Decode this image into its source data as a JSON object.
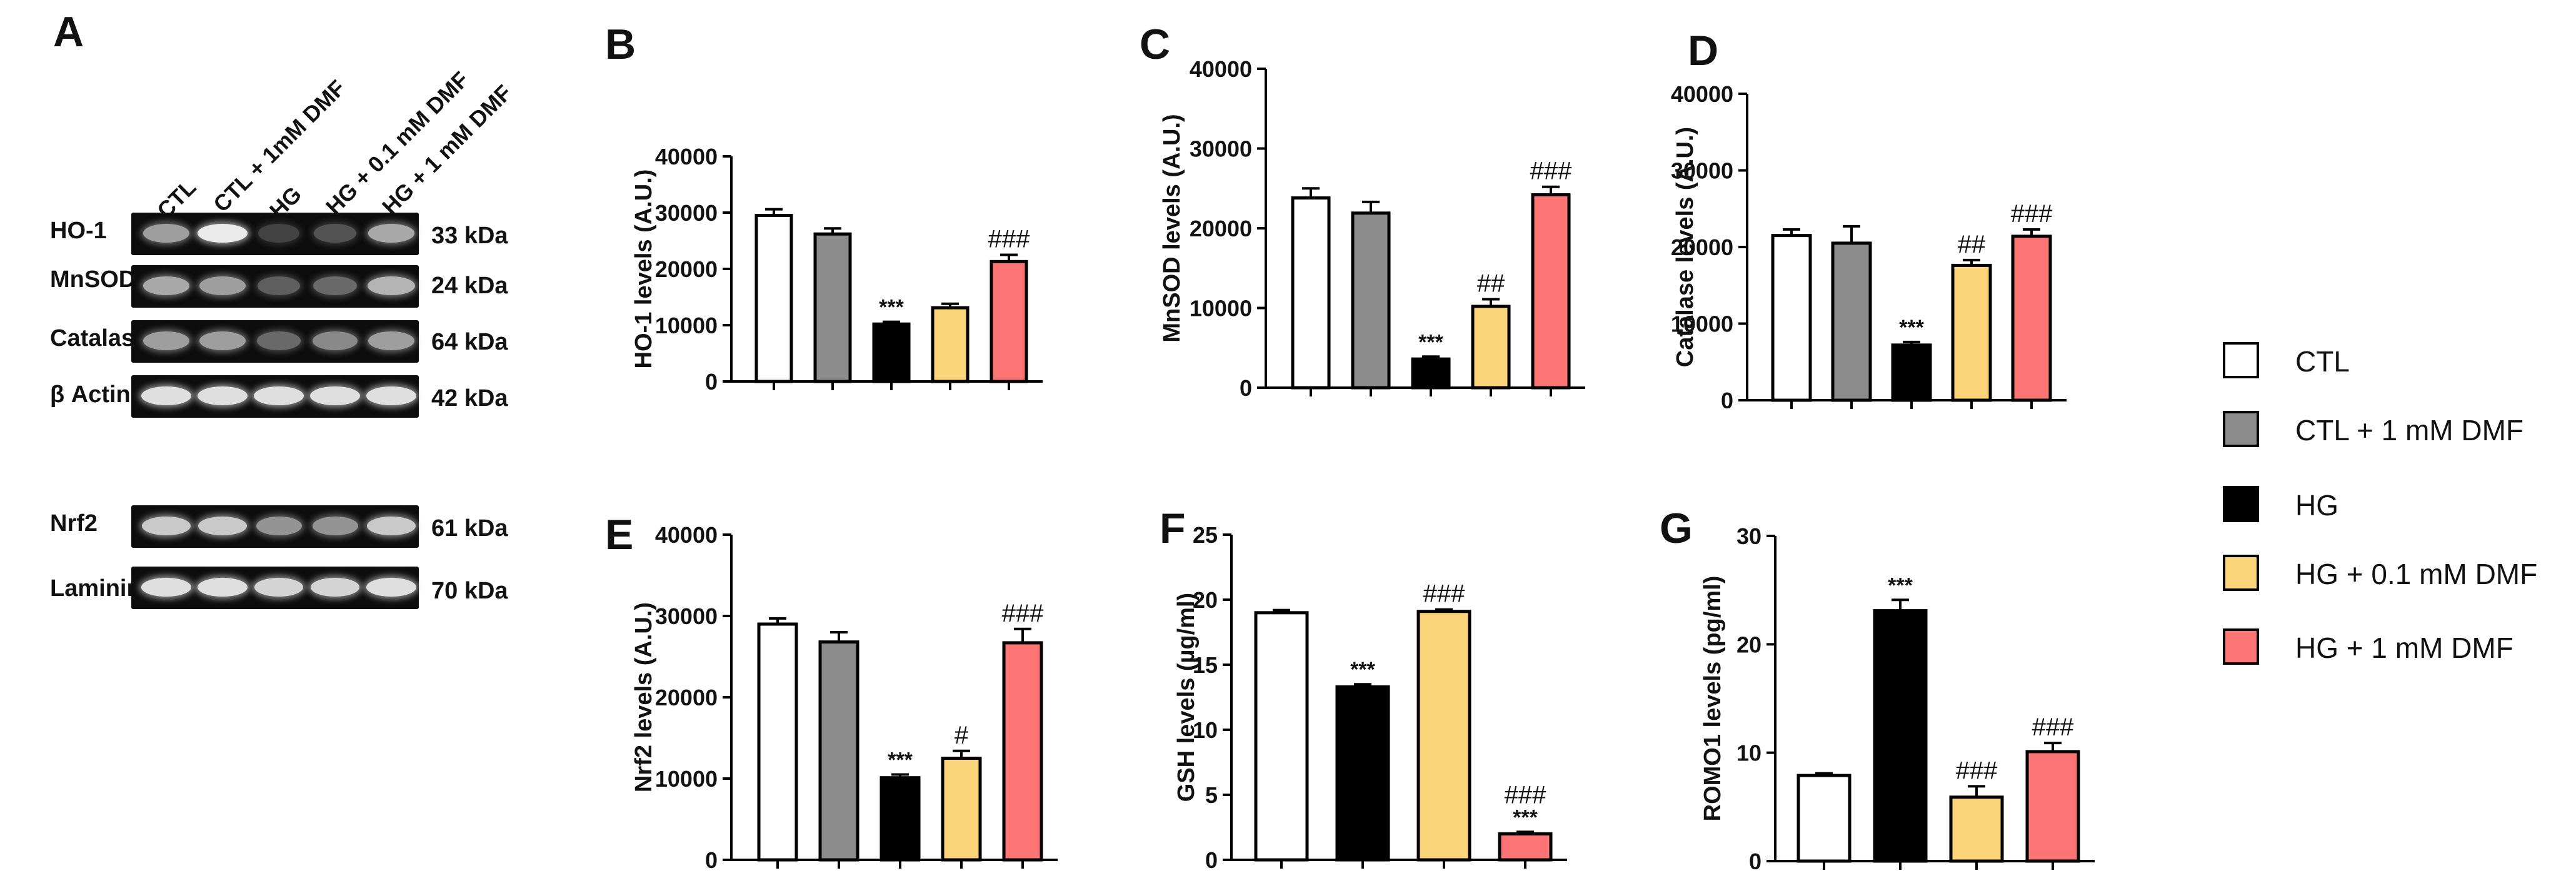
{
  "panel_labels": {
    "a": "A",
    "b": "B",
    "c": "C",
    "d": "D",
    "e": "E",
    "f": "F",
    "g": "G"
  },
  "blot": {
    "lanes": [
      "CTL",
      "CTL + 1mM DMF",
      "HG",
      "HG + 0.1 mM DMF",
      "HG + 1 mM DMF"
    ],
    "rows": [
      {
        "protein": "HO-1",
        "size": "33 kDa",
        "intensity": [
          0.55,
          0.9,
          0.12,
          0.2,
          0.6
        ]
      },
      {
        "protein": "MnSOD",
        "size": "24 kDa",
        "intensity": [
          0.6,
          0.55,
          0.25,
          0.3,
          0.65
        ]
      },
      {
        "protein": "Catalase",
        "size": "64 kDa",
        "intensity": [
          0.55,
          0.55,
          0.3,
          0.45,
          0.55
        ]
      },
      {
        "protein": "β Actin",
        "size": "42 kDa",
        "intensity": [
          0.85,
          0.85,
          0.85,
          0.85,
          0.85
        ]
      },
      {
        "protein": "Nrf2",
        "size": "61 kDa",
        "intensity": [
          0.75,
          0.75,
          0.5,
          0.5,
          0.75
        ]
      },
      {
        "protein": "Laminin",
        "size": "70 kDa",
        "intensity": [
          0.85,
          0.85,
          0.8,
          0.8,
          0.85
        ]
      }
    ]
  },
  "legend": [
    {
      "label": "CTL",
      "color": "#ffffff"
    },
    {
      "label": "CTL + 1 mM DMF",
      "color": "#8c8c8c"
    },
    {
      "label": "HG",
      "color": "#000000"
    },
    {
      "label": "HG + 0.1 mM DMF",
      "color": "#fcd57a"
    },
    {
      "label": "HG + 1 mM DMF",
      "color": "#fc7474"
    }
  ],
  "chart_data": [
    {
      "type": "bar",
      "panel": "B",
      "ylabel": "HO-1 levels (A.U.)",
      "ylim": [
        0,
        40000
      ],
      "yticks": [
        "0",
        "10000",
        "20000",
        "30000",
        "40000"
      ],
      "categories": [
        "CTL",
        "CTL + 1 mM DMF",
        "HG",
        "HG + 0.1 mM DMF",
        "HG + 1 mM DMF"
      ],
      "values": [
        29500,
        26200,
        10200,
        13100,
        21300
      ],
      "errors": [
        1100,
        1000,
        400,
        700,
        1200
      ],
      "colors": [
        "#ffffff",
        "#8c8c8c",
        "#000000",
        "#fcd57a",
        "#fc7474"
      ],
      "annotations": [
        "",
        "",
        "***",
        "",
        "###"
      ]
    },
    {
      "type": "bar",
      "panel": "C",
      "ylabel": "MnSOD levels (A.U.)",
      "ylim": [
        0,
        40000
      ],
      "yticks": [
        "0",
        "10000",
        "20000",
        "30000",
        "40000"
      ],
      "categories": [
        "CTL",
        "CTL + 1 mM DMF",
        "HG",
        "HG + 0.1 mM DMF",
        "HG + 1 mM DMF"
      ],
      "values": [
        23800,
        21900,
        3600,
        10200,
        24200
      ],
      "errors": [
        1200,
        1400,
        300,
        900,
        1000
      ],
      "colors": [
        "#ffffff",
        "#8c8c8c",
        "#000000",
        "#fcd57a",
        "#fc7474"
      ],
      "annotations": [
        "",
        "",
        "***",
        "##",
        "###"
      ]
    },
    {
      "type": "bar",
      "panel": "D",
      "ylabel": "Catalase levels (A.U.)",
      "ylim": [
        0,
        40000
      ],
      "yticks": [
        "0",
        "10000",
        "20000",
        "30000",
        "40000"
      ],
      "categories": [
        "CTL",
        "CTL + 1 mM DMF",
        "HG",
        "HG + 0.1 mM DMF",
        "HG + 1 mM DMF"
      ],
      "values": [
        21500,
        20500,
        7200,
        17600,
        21400
      ],
      "errors": [
        800,
        2200,
        400,
        700,
        900
      ],
      "colors": [
        "#ffffff",
        "#8c8c8c",
        "#000000",
        "#fcd57a",
        "#fc7474"
      ],
      "annotations": [
        "",
        "",
        "***",
        "##",
        "###"
      ]
    },
    {
      "type": "bar",
      "panel": "E",
      "ylabel": "Nrf2 levels (A.U.)",
      "ylim": [
        0,
        40000
      ],
      "yticks": [
        "0",
        "10000",
        "20000",
        "30000",
        "40000"
      ],
      "categories": [
        "CTL",
        "CTL + 1 mM DMF",
        "HG",
        "HG + 0.1 mM DMF",
        "HG + 1 mM DMF"
      ],
      "values": [
        29000,
        26800,
        10100,
        12500,
        26700
      ],
      "errors": [
        700,
        1200,
        400,
        900,
        1700
      ],
      "colors": [
        "#ffffff",
        "#8c8c8c",
        "#000000",
        "#fcd57a",
        "#fc7474"
      ],
      "annotations": [
        "",
        "",
        "***",
        "#",
        "###"
      ]
    },
    {
      "type": "bar",
      "panel": "F",
      "ylabel": "GSH levels (µg/ml)",
      "ylim": [
        0,
        25
      ],
      "yticks": [
        "0",
        "5",
        "10",
        "15",
        "20",
        "25"
      ],
      "categories": [
        "CTL",
        "HG",
        "HG + 0.1 mM DMF",
        "HG + 1 mM DMF"
      ],
      "values": [
        19.0,
        13.3,
        19.1,
        2.0
      ],
      "errors": [
        0.2,
        0.2,
        0.15,
        0.15
      ],
      "colors": [
        "#ffffff",
        "#000000",
        "#fcd57a",
        "#fc7474"
      ],
      "annotations": [
        "",
        "***",
        "###",
        "###\n***"
      ]
    },
    {
      "type": "bar",
      "panel": "G",
      "ylabel": "ROMO1 levels (pg/ml)",
      "ylim": [
        0,
        30
      ],
      "yticks": [
        "0",
        "10",
        "20",
        "30"
      ],
      "categories": [
        "CTL",
        "HG",
        "HG + 0.1 mM DMF",
        "HG + 1 mM DMF"
      ],
      "values": [
        7.9,
        23.1,
        5.9,
        10.1
      ],
      "errors": [
        0.2,
        1.0,
        1.0,
        0.8
      ],
      "colors": [
        "#ffffff",
        "#000000",
        "#fcd57a",
        "#fc7474"
      ],
      "annotations": [
        "",
        "***",
        "###",
        "###"
      ]
    }
  ]
}
